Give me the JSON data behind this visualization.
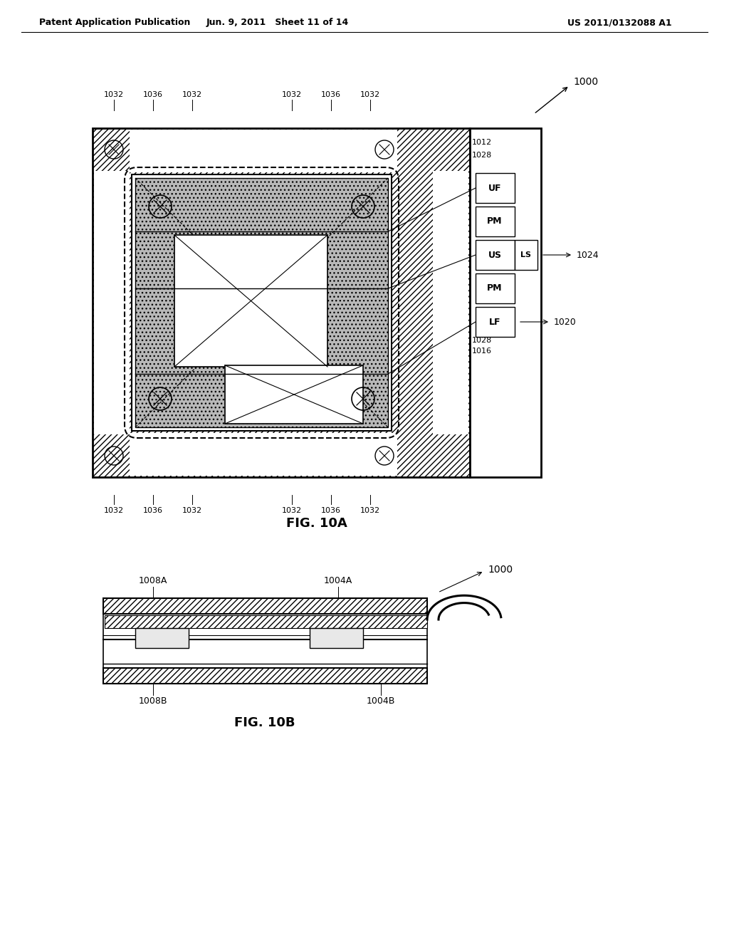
{
  "header_left": "Patent Application Publication",
  "header_mid": "Jun. 9, 2011   Sheet 11 of 14",
  "header_right": "US 2011/0132088 A1",
  "fig10a_label": "FIG. 10A",
  "fig10b_label": "FIG. 10B",
  "ref_1000": "1000",
  "ref_1012": "1012",
  "ref_1028a": "1028",
  "ref_1028b": "1028",
  "ref_1016": "1016",
  "ref_1020": "1020",
  "ref_1024": "1024",
  "ref_1032": "1032",
  "ref_1036": "1036",
  "ref_UF": "UF",
  "ref_PM": "PM",
  "ref_US": "US",
  "ref_LS": "LS",
  "ref_LF": "LF",
  "ref_1008A": "1008A",
  "ref_1004A": "1004A",
  "ref_1008B": "1008B",
  "ref_1004B": "1004B"
}
